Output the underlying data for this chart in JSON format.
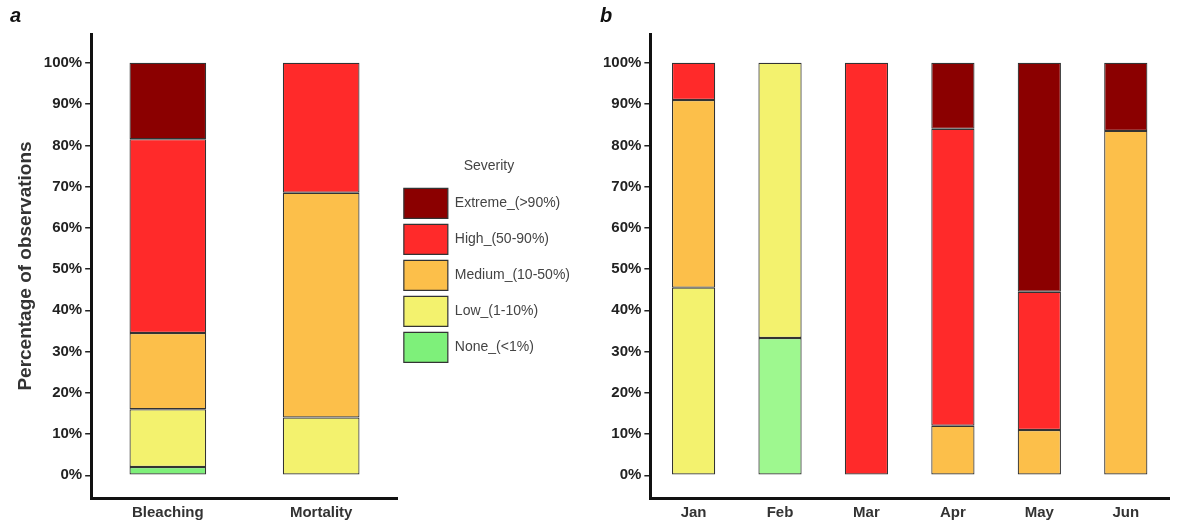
{
  "chart_data": [
    {
      "type": "bar",
      "title": "a",
      "ylabel": "Percentage of observations",
      "legend_title": "Severity",
      "legend": "right",
      "stacked": true,
      "grid": false,
      "categories": [
        "Bleaching",
        "Mortality"
      ],
      "series": [
        {
          "name": "None_(<1%)",
          "color": "#7ef07a",
          "values": [
            2,
            null
          ]
        },
        {
          "name": "Low_(1-10%)",
          "color": "#f3f26e",
          "values": [
            14,
            14
          ]
        },
        {
          "name": "Medium_(10-50%)",
          "color": "#fcbf4a",
          "values": [
            18.5,
            54.5
          ]
        },
        {
          "name": "High_(50-90%)",
          "color": "#ff2a2a",
          "values": [
            47,
            31.5
          ]
        },
        {
          "name": "Extreme_(>90%)",
          "color": "#8b0000",
          "values": [
            18.5,
            null
          ]
        }
      ],
      "ylim": [
        -5.5,
        107
      ],
      "yticks": [
        {
          "value": 0,
          "label": "0%"
        },
        {
          "value": 10,
          "label": "10%"
        },
        {
          "value": 20,
          "label": "20%"
        },
        {
          "value": 30,
          "label": "30%"
        },
        {
          "value": 40,
          "label": "40%"
        },
        {
          "value": 50,
          "label": "50%"
        },
        {
          "value": 60,
          "label": "60%"
        },
        {
          "value": 70,
          "label": "70%"
        },
        {
          "value": 80,
          "label": "80%"
        },
        {
          "value": 90,
          "label": "90%"
        },
        {
          "value": 100,
          "label": "100%"
        }
      ]
    },
    {
      "type": "bar",
      "title": "b",
      "legend": false,
      "stacked": true,
      "grid": false,
      "categories": [
        "Jan",
        "Feb",
        "Mar",
        "Apr",
        "May",
        "Jun"
      ],
      "series": [
        {
          "color": "#9ef88f",
          "values": [
            null,
            33.3,
            null,
            null,
            null,
            null
          ]
        },
        {
          "color": "#f3f26e",
          "values": [
            45.5,
            66.7,
            null,
            null,
            null,
            null
          ]
        },
        {
          "color": "#fcbf4a",
          "values": [
            45.5,
            null,
            null,
            12,
            11,
            83.5
          ]
        },
        {
          "color": "#ff2a2a",
          "values": [
            9,
            null,
            100,
            72,
            33.5,
            null
          ]
        },
        {
          "color": "#8b0000",
          "values": [
            null,
            null,
            null,
            16,
            55.5,
            16.5
          ]
        }
      ],
      "ylim": [
        -5.5,
        107
      ],
      "yticks": [
        {
          "value": 0,
          "label": "0%"
        },
        {
          "value": 10,
          "label": "10%"
        },
        {
          "value": 20,
          "label": "20%"
        },
        {
          "value": 30,
          "label": "30%"
        },
        {
          "value": 40,
          "label": "40%"
        },
        {
          "value": 50,
          "label": "50%"
        },
        {
          "value": 60,
          "label": "60%"
        },
        {
          "value": 70,
          "label": "70%"
        },
        {
          "value": 80,
          "label": "80%"
        },
        {
          "value": 90,
          "label": "90%"
        },
        {
          "value": 100,
          "label": "100%"
        }
      ]
    }
  ]
}
